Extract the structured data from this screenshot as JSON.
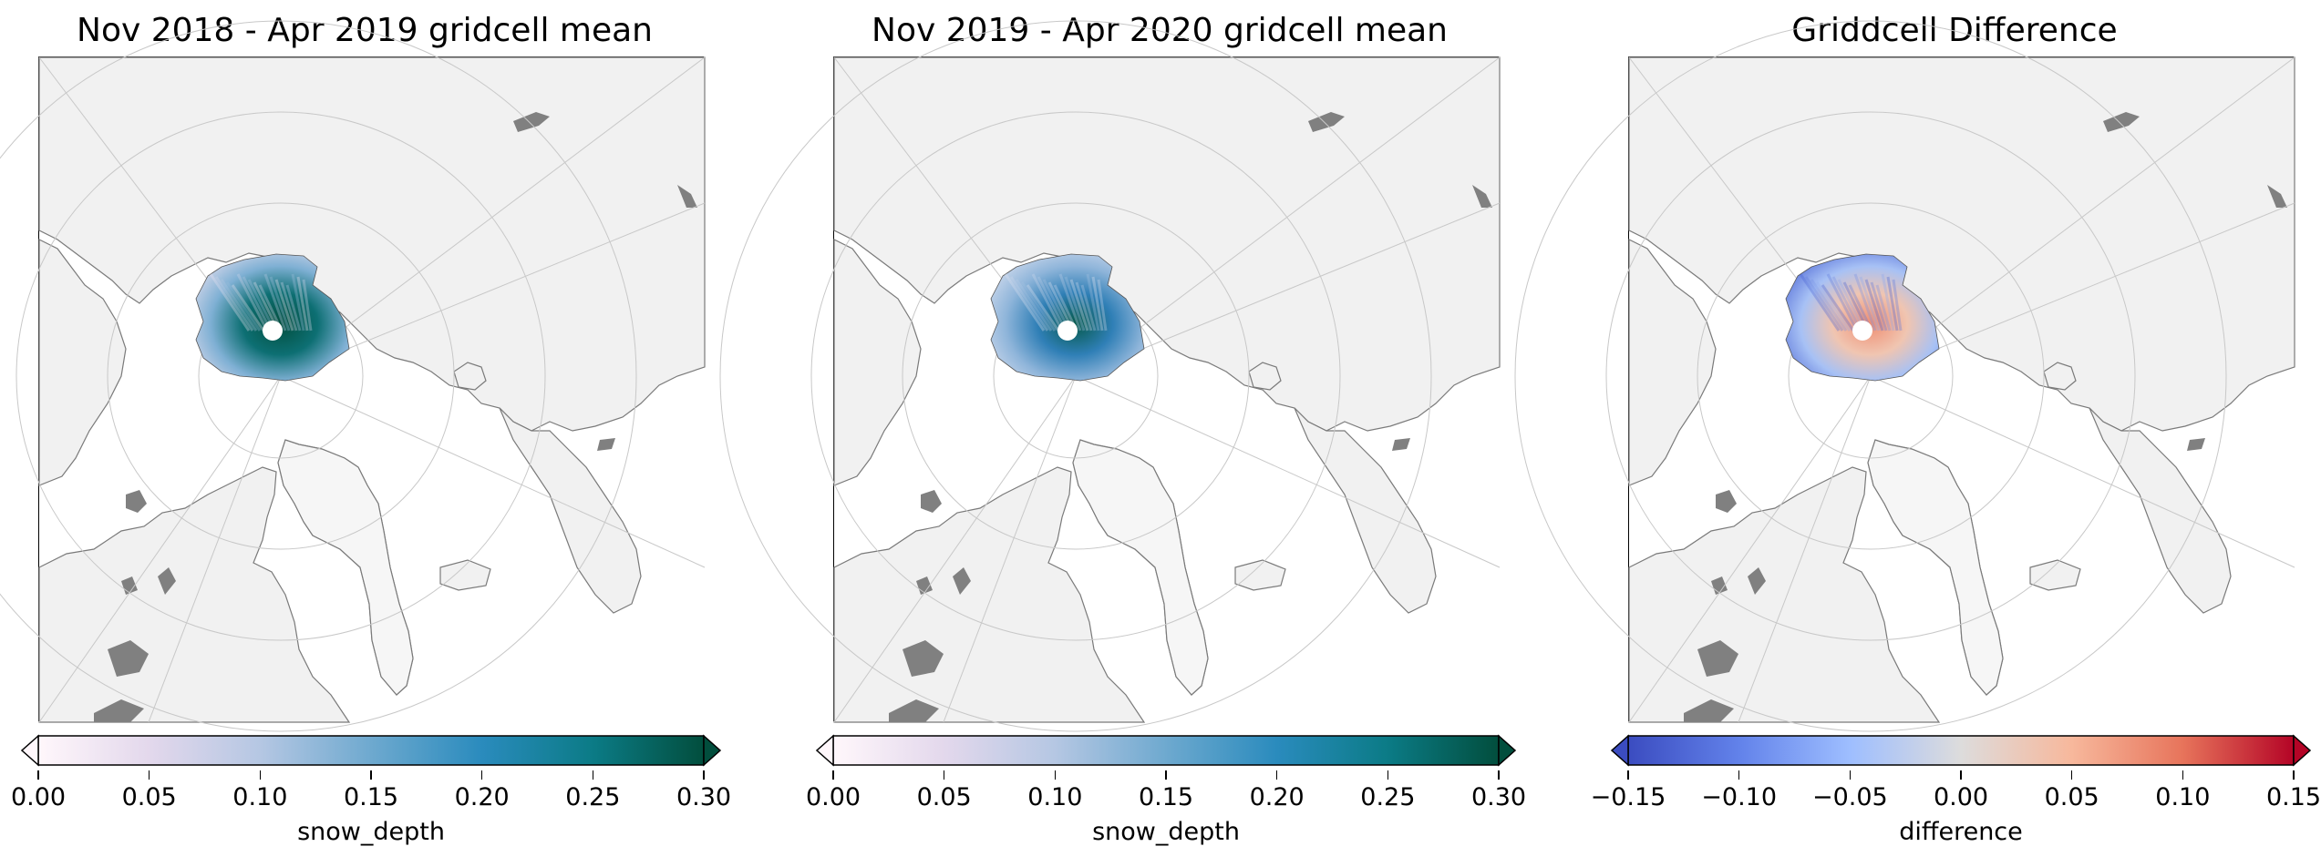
{
  "panels": [
    {
      "title": "Nov 2018 - Apr 2019 gridcell mean",
      "colorbar": {
        "label": "snow_depth",
        "ticks": [
          "0.00",
          "0.05",
          "0.10",
          "0.15",
          "0.20",
          "0.25",
          "0.30"
        ],
        "range": [
          0.0,
          0.3
        ],
        "colors": [
          "#fff7fb",
          "#e3d8ec",
          "#b5c7e3",
          "#6ea9cf",
          "#2a8bbd",
          "#0b7b86",
          "#024e3d"
        ]
      },
      "map_field": {
        "tone": "deep",
        "description_colors": [
          "#e9e1f0",
          "#7fb0d4",
          "#0d6f73",
          "#024e3d"
        ]
      }
    },
    {
      "title": "Nov 2019 - Apr 2020 gridcell mean",
      "colorbar": {
        "label": "snow_depth",
        "ticks": [
          "0.00",
          "0.05",
          "0.10",
          "0.15",
          "0.20",
          "0.25",
          "0.30"
        ],
        "range": [
          0.0,
          0.3
        ],
        "colors": [
          "#fff7fb",
          "#e3d8ec",
          "#b5c7e3",
          "#6ea9cf",
          "#2a8bbd",
          "#0b7b86",
          "#024e3d"
        ]
      },
      "map_field": {
        "tone": "shallow",
        "description_colors": [
          "#dde2f1",
          "#8fb5da",
          "#2f7fb6",
          "#05594a"
        ]
      }
    },
    {
      "title": "Griddcell Difference",
      "colorbar": {
        "label": "difference",
        "ticks": [
          "−0.15",
          "−0.10",
          "−0.05",
          "0.00",
          "0.05",
          "0.10",
          "0.15"
        ],
        "range": [
          -0.15,
          0.15
        ],
        "colors": [
          "#3b4cc0",
          "#6282ea",
          "#9ebeff",
          "#dddcdc",
          "#f7b89c",
          "#e7745b",
          "#b40426"
        ]
      },
      "map_field": {
        "tone": "diverging",
        "description_colors": [
          "#4a63d3",
          "#a7c1f5",
          "#f0c5b1",
          "#ef8e72"
        ]
      }
    }
  ]
}
